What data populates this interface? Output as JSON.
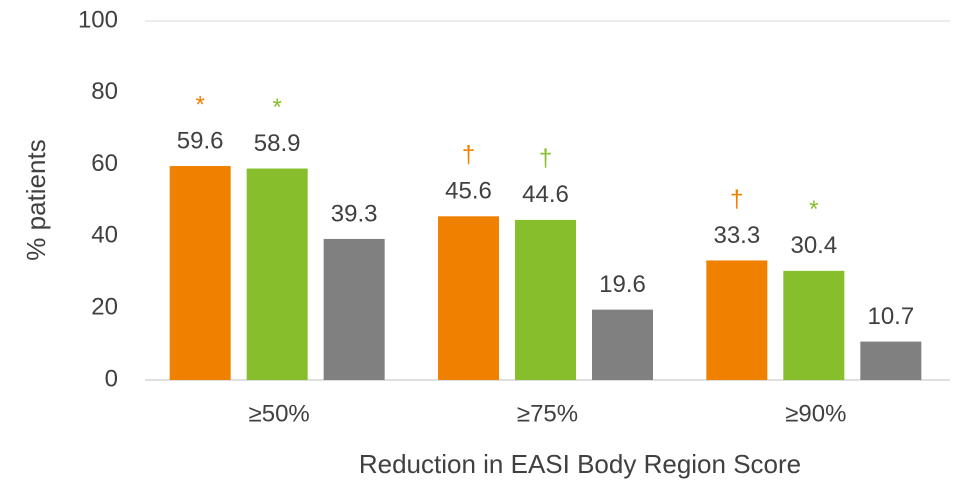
{
  "chart_data": {
    "type": "bar",
    "categories": [
      "≥50%",
      "≥75%",
      "≥90%"
    ],
    "series": [
      {
        "color": "#f08000",
        "values": [
          59.6,
          45.6,
          33.3
        ],
        "annotations": [
          "*",
          "†",
          "†"
        ]
      },
      {
        "color": "#86bf2b",
        "values": [
          58.9,
          44.6,
          30.4
        ],
        "annotations": [
          "*",
          "†",
          "*"
        ]
      },
      {
        "color": "#808080",
        "values": [
          39.3,
          19.6,
          10.7
        ]
      }
    ],
    "xlabel": "Reduction in EASI Body Region Score",
    "ylabel": "% patients",
    "ylim": [
      0,
      100
    ],
    "yticks": [
      0,
      20,
      40,
      60,
      80,
      100
    ],
    "grid": false
  }
}
